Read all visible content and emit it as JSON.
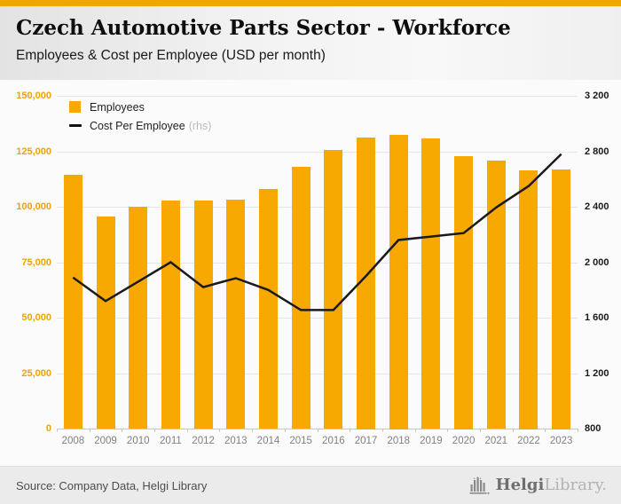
{
  "header": {
    "title": "Czech Automotive Parts Sector - Workforce",
    "subtitle": "Employees & Cost per Employee (USD per month)"
  },
  "legend": {
    "bar_label": "Employees",
    "line_label": "Cost Per Employee",
    "line_suffix": "(rhs)"
  },
  "chart_data": {
    "type": "bar+line",
    "categories": [
      "2008",
      "2009",
      "2010",
      "2011",
      "2012",
      "2013",
      "2014",
      "2015",
      "2016",
      "2017",
      "2018",
      "2019",
      "2020",
      "2021",
      "2022",
      "2023"
    ],
    "series": [
      {
        "name": "Employees",
        "type": "bar",
        "axis": "left",
        "color": "#F8A901",
        "values": [
          114400,
          95600,
          100000,
          102800,
          102700,
          103100,
          108000,
          118000,
          125500,
          131400,
          132600,
          130900,
          123000,
          120700,
          116600,
          117000
        ]
      },
      {
        "name": "Cost Per Employee",
        "type": "line",
        "axis": "right",
        "color": "#1a1a1a",
        "values": [
          1890,
          1720,
          1860,
          2000,
          1820,
          1885,
          1800,
          1655,
          1655,
          1900,
          2160,
          2185,
          2210,
          2395,
          2550,
          2780
        ]
      }
    ],
    "left_axis": {
      "min": 0,
      "max": 150000,
      "step": 25000,
      "color": "#F0A202",
      "tick_labels": [
        "150,000",
        "125,000",
        "100,000",
        "75,000",
        "50,000",
        "25,000",
        "0"
      ]
    },
    "right_axis": {
      "min": 800,
      "max": 3200,
      "step": 400,
      "color": "#1a1a1a",
      "tick_labels": [
        "3 200",
        "2 800",
        "2 400",
        "2 000",
        "1 600",
        "1 200",
        "800"
      ]
    },
    "grid": true,
    "legend_position": "top-left",
    "title": "Czech Automotive Parts Sector - Workforce",
    "subtitle": "Employees & Cost per Employee (USD per month)"
  },
  "footer": {
    "source": "Source: Company Data, Helgi Library",
    "logo_bold": "Helgi",
    "logo_light": "Library."
  },
  "colors": {
    "accent": "#F2A500",
    "bar": "#F8A901",
    "line": "#1a1a1a",
    "left_axis_text": "#F0A202",
    "right_axis_text": "#1a1a1a",
    "x_axis_text": "#808080"
  }
}
